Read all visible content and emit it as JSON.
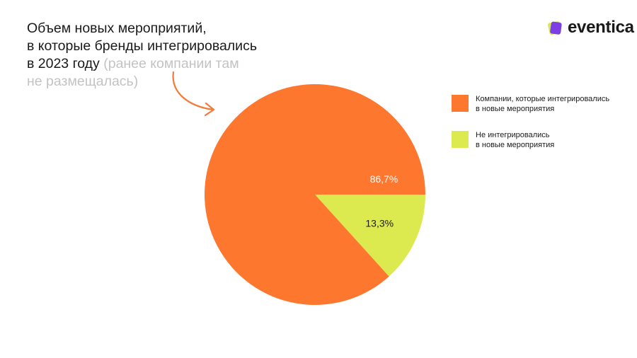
{
  "title": {
    "line1": "Объем новых мероприятий,",
    "line2": "в которые бренды интегрировались",
    "line3_main": "в 2023 году",
    "line3_note": "(ранее компании там",
    "line4_note": "не размещалась)"
  },
  "logo": {
    "text": "eventica",
    "mark_color": "#7b3fe4",
    "mark_back_color": "#d9e84a",
    "icon": "eventica-logo-icon"
  },
  "arrow": {
    "icon": "curved-arrow-icon",
    "color": "#f47a38"
  },
  "colors": {
    "orange": "#fd772f",
    "yellow": "#dcea4f"
  },
  "chart_data": {
    "type": "pie",
    "title": "",
    "slices": [
      {
        "name": "Компании, которые интегрировались в новые мероприятия",
        "value": 86.7,
        "label": "86,7%",
        "color": "#fd772f",
        "label_color": "#ffffff"
      },
      {
        "name": "Не интегрировались в новые мероприятия",
        "value": 13.3,
        "label": "13,3%",
        "color": "#dcea4f",
        "label_color": "#1a1a1a"
      }
    ],
    "legend": {
      "position": "right",
      "items": [
        {
          "line1": "Компании, которые интегрировались",
          "line2": "в новые мероприятия",
          "color": "#fd772f"
        },
        {
          "line1": "Не интегрировались",
          "line2": "в новые мероприятия",
          "color": "#dcea4f"
        }
      ]
    }
  }
}
